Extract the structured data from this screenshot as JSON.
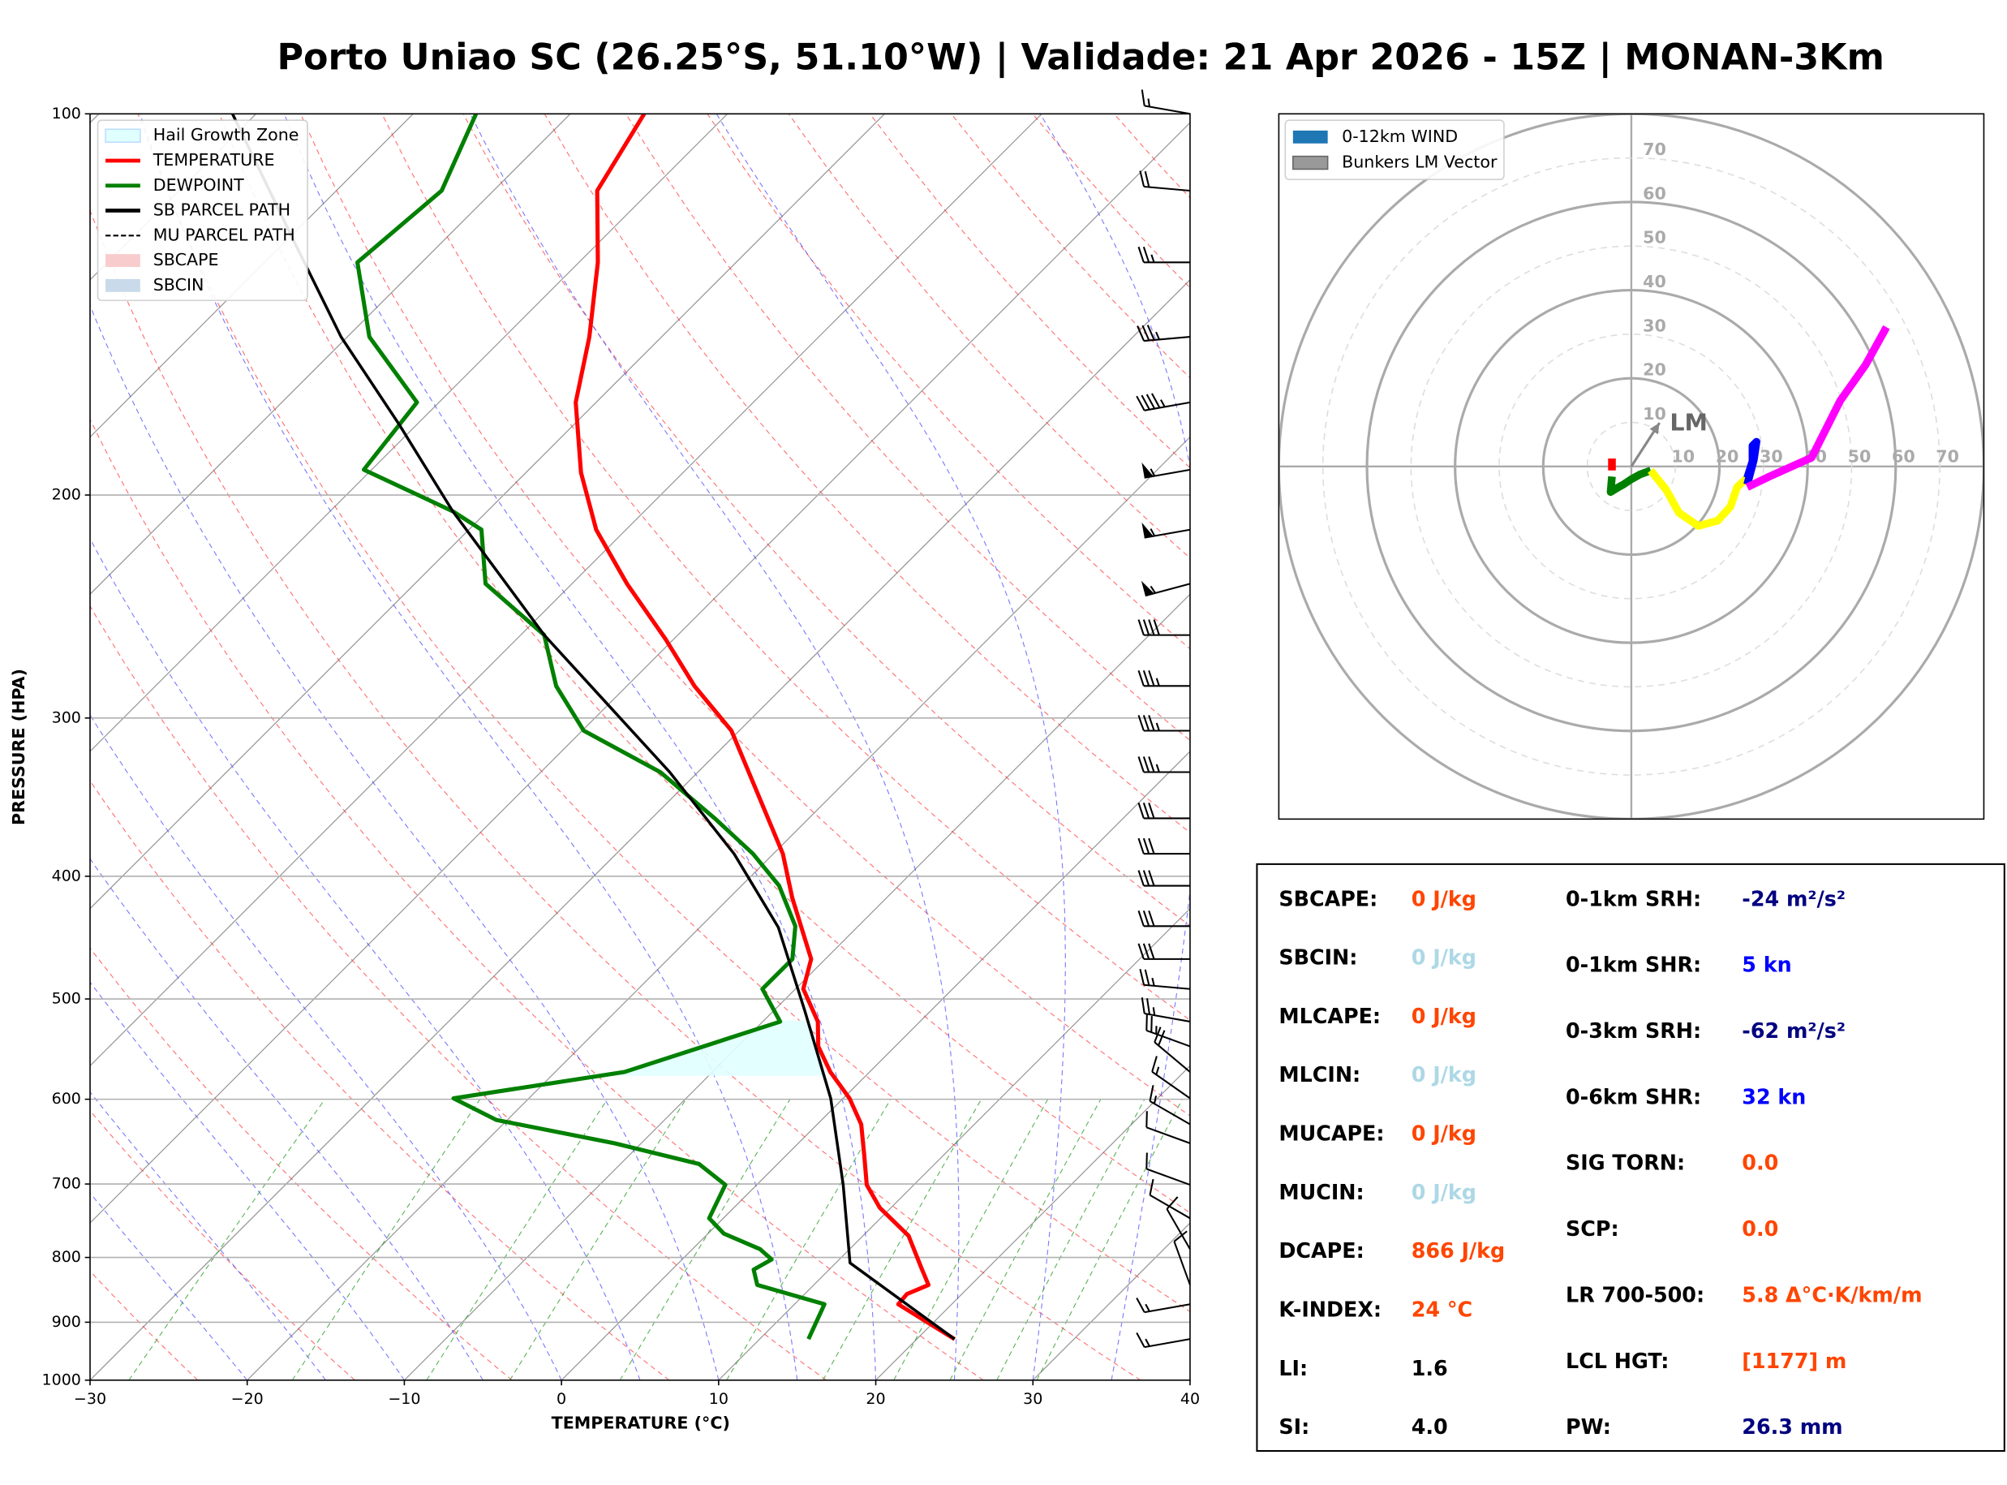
{
  "title": "Porto Uniao SC (26.25°S, 51.10°W) | Validade: 21 Apr 2026 - 15Z | MONAN-3Km",
  "chart_data": [
    {
      "type": "skewt",
      "xlabel": "TEMPERATURE (°C)",
      "ylabel": "PRESSURE (HPA)",
      "xlim": [
        -30,
        40
      ],
      "ylim": [
        1000,
        100
      ],
      "log_y": true,
      "grid": true,
      "xticks": [
        {
          "value": -30,
          "label": "−30"
        },
        {
          "value": -20,
          "label": "−20"
        },
        {
          "value": -10,
          "label": "−10"
        },
        0,
        10,
        20,
        30,
        40
      ],
      "yticks": [
        1000,
        900,
        800,
        700,
        600,
        500,
        400,
        300,
        200,
        100
      ],
      "legend": "upper left",
      "series": [
        {
          "name": "Hail Growth Zone",
          "color": "#e0ffff",
          "style": "area",
          "pressure_range": [
            575,
            520
          ]
        },
        {
          "name": "TEMPERATURE",
          "color": "#ff0000",
          "style": "line",
          "pressure": [
            928,
            871,
            855,
            841,
            816,
            769,
            731,
            701,
            665,
            628,
            599,
            571,
            545,
            521,
            491,
            465,
            416,
            384,
            307,
            283,
            260,
            235,
            213,
            192,
            169,
            150,
            131,
            115,
            100
          ],
          "values": [
            22.4,
            16.6,
            16.5,
            17.3,
            15.8,
            12.9,
            9.3,
            7.0,
            5.0,
            2.8,
            0.4,
            -2.5,
            -4.9,
            -6.5,
            -9.5,
            -10.9,
            -16,
            -19.4,
            -30.5,
            -35.7,
            -40.5,
            -46.5,
            -51.9,
            -56.5,
            -61.3,
            -64.6,
            -68.8,
            -73.4,
            -75.3
          ]
        },
        {
          "name": "DEWPOINT",
          "color": "#008000",
          "style": "line",
          "pressure": [
            928,
            871,
            841,
            818,
            803,
            788,
            766,
            745,
            701,
            675,
            650,
            623,
            599,
            571,
            521,
            491,
            465,
            438,
            407,
            384,
            360,
            331,
            307,
            283,
            258,
            235,
            213,
            206,
            191,
            169,
            150,
            131,
            115,
            100
          ],
          "values": [
            13.1,
            11.9,
            6.4,
            5.2,
            5.7,
            4.3,
            1.0,
            -0.9,
            -2.0,
            -5,
            -11.7,
            -20.7,
            -24.8,
            -15.6,
            -8.9,
            -12.1,
            -12.1,
            -14,
            -17.6,
            -21.3,
            -26,
            -32.4,
            -39.9,
            -44.5,
            -48.5,
            -55.5,
            -59.2,
            -62.2,
            -70.5,
            -71.4,
            -78.6,
            -84.1,
            -83.3,
            -86
          ]
        },
        {
          "name": "SB PARCEL PATH",
          "color": "#000000",
          "style": "line",
          "pressure": [
            928,
            808,
            701,
            599,
            511,
            439,
            384,
            331,
            258,
            206,
            176,
            150,
            127,
            100
          ],
          "values": [
            22.4,
            10.9,
            5.5,
            -0.8,
            -8,
            -15,
            -22.5,
            -31.8,
            -48.5,
            -62.2,
            -71.1,
            -80.4,
            -89.1,
            -101.5
          ]
        },
        {
          "name": "MU PARCEL PATH",
          "color": "#000000",
          "style": "dashed"
        },
        {
          "name": "SBCAPE",
          "color": "#f8cccc",
          "style": "patch"
        },
        {
          "name": "SBCIN",
          "color": "#c9daea",
          "style": "patch"
        }
      ],
      "winds": {
        "pressure": [
          100,
          115,
          131,
          150,
          169,
          191,
          213,
          235,
          258,
          283,
          307,
          331,
          360,
          384,
          407,
          438,
          465,
          491,
          521,
          545,
          571,
          599,
          628,
          650,
          701,
          745,
          788,
          841,
          871,
          928
        ],
        "speed": [
          15,
          20,
          25,
          35,
          45,
          55,
          55,
          55,
          40,
          35,
          35,
          35,
          30,
          30,
          30,
          30,
          30,
          25,
          25,
          25,
          20,
          15,
          15,
          10,
          10,
          10,
          10,
          10,
          15,
          15
        ],
        "direction": [
          280,
          275,
          270,
          265,
          260,
          260,
          260,
          255,
          270,
          270,
          270,
          270,
          270,
          270,
          270,
          270,
          270,
          275,
          280,
          290,
          310,
          305,
          300,
          290,
          290,
          300,
          330,
          340,
          260,
          260
        ]
      }
    },
    {
      "type": "hodograph",
      "xlim": [
        -80,
        80
      ],
      "ylim": [
        -80,
        80
      ],
      "rings": [
        10,
        20,
        30,
        40,
        50,
        60,
        70
      ],
      "legend": [
        {
          "name": "0-12km WIND",
          "color": "#1f77b4"
        },
        {
          "name": "Bunkers LM Vector",
          "color": "#999999"
        }
      ],
      "segments": [
        {
          "color": "#ff0000",
          "u": [
            -4.4,
            -4.4
          ],
          "v": [
            -0.9,
            1.8
          ]
        },
        {
          "color": "#008000",
          "u": [
            -4.4,
            -4.7,
            -2.9,
            -1.8,
            0,
            2.0,
            4.4
          ],
          "v": [
            -2.3,
            -5.8,
            -4.7,
            -4.1,
            -2.9,
            -1.8,
            -0.9
          ]
        },
        {
          "color": "#ffff00",
          "u": [
            4.4,
            7.9,
            10.8,
            15.2,
            19.6,
            22.5,
            24.0,
            26.3
          ],
          "v": [
            -0.9,
            -5.3,
            -10.5,
            -13.5,
            -12.3,
            -9.1,
            -4.7,
            -2.6
          ]
        },
        {
          "color": "#0000ff",
          "u": [
            26.3,
            27.5,
            27.5,
            28.4,
            27.8,
            26.3
          ],
          "v": [
            -2.6,
            1.2,
            4.7,
            5.6,
            1.5,
            -4.1
          ]
        },
        {
          "color": "#ff00ff",
          "u": [
            26.3,
            31.3,
            40.9,
            47.4,
            53.2,
            57.9
          ],
          "v": [
            -4.7,
            -2.3,
            2.0,
            14.9,
            23.1,
            31.6
          ]
        }
      ],
      "lm": {
        "label": "LM",
        "color": "#888888",
        "u": 6.4,
        "v": 9.9
      }
    }
  ],
  "indices": {
    "left": [
      {
        "label": "SBCAPE:",
        "value": "0 J/kg",
        "color": "#ff4500"
      },
      {
        "label": "SBCIN:",
        "value": "0 J/kg",
        "color": "#add8e6"
      },
      {
        "label": "MLCAPE:",
        "value": "0 J/kg",
        "color": "#ff4500"
      },
      {
        "label": "MLCIN:",
        "value": "0 J/kg",
        "color": "#add8e6"
      },
      {
        "label": "MUCAPE:",
        "value": "0 J/kg",
        "color": "#ff4500"
      },
      {
        "label": "MUCIN:",
        "value": "0 J/kg",
        "color": "#add8e6"
      },
      {
        "label": "DCAPE:",
        "value": "866 J/kg",
        "color": "#ff4500"
      },
      {
        "label": "K-INDEX:",
        "value": "24 °C",
        "color": "#ff4500"
      },
      {
        "label": "LI:",
        "value": "1.6",
        "color": "#000000"
      },
      {
        "label": "SI:",
        "value": "4.0",
        "color": "#000000"
      }
    ],
    "right": [
      {
        "label": "0-1km SRH:",
        "value": "-24 m²/s²",
        "color": "#000080"
      },
      {
        "label": "0-1km SHR:",
        "value": "5 kn",
        "color": "#0000ff"
      },
      {
        "label": "0-3km SRH:",
        "value": "-62 m²/s²",
        "color": "#000080"
      },
      {
        "label": "0-6km SHR:",
        "value": "32 kn",
        "color": "#0000ff"
      },
      {
        "label": "SIG TORN:",
        "value": "0.0",
        "color": "#ff4500"
      },
      {
        "label": "SCP:",
        "value": "0.0",
        "color": "#ff4500"
      },
      {
        "label": "LR 700-500:",
        "value": "5.8 Δ°C·K/km/m",
        "color": "#ff4500"
      },
      {
        "label": "LCL HGT:",
        "value": "[1177] m",
        "color": "#ff4500"
      },
      {
        "label": "PW:",
        "value": "26.3 mm",
        "color": "#000080"
      }
    ]
  }
}
